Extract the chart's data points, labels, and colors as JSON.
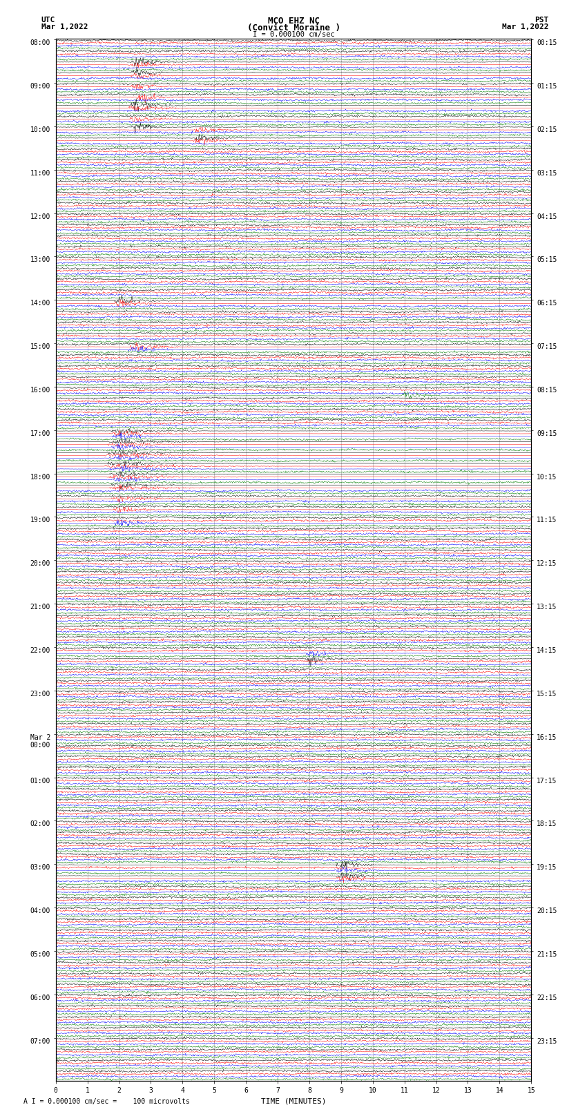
{
  "title_line1": "MCO EHZ NC",
  "title_line2": "(Convict Moraine )",
  "scale_label": "I = 0.000100 cm/sec",
  "bottom_label": "A I = 0.000100 cm/sec =    100 microvolts",
  "xlabel": "TIME (MINUTES)",
  "utc_label": "UTC",
  "utc_date": "Mar 1,2022",
  "pst_label": "PST",
  "pst_date": "Mar 1,2022",
  "left_times_hourly": [
    "08:00",
    "09:00",
    "10:00",
    "11:00",
    "12:00",
    "13:00",
    "14:00",
    "15:00",
    "16:00",
    "17:00",
    "18:00",
    "19:00",
    "20:00",
    "21:00",
    "22:00",
    "23:00",
    "Mar 2\n00:00",
    "01:00",
    "02:00",
    "03:00",
    "04:00",
    "05:00",
    "06:00",
    "07:00"
  ],
  "right_times_hourly": [
    "00:15",
    "01:15",
    "02:15",
    "03:15",
    "04:15",
    "05:15",
    "06:15",
    "07:15",
    "08:15",
    "09:15",
    "10:15",
    "11:15",
    "12:15",
    "13:15",
    "14:15",
    "15:15",
    "16:15",
    "17:15",
    "18:15",
    "19:15",
    "20:15",
    "21:15",
    "22:15",
    "23:15"
  ],
  "colors": [
    "black",
    "red",
    "blue",
    "green"
  ],
  "num_rows": 96,
  "traces_per_row": 4,
  "minutes_per_row": 15,
  "bg_color": "white",
  "grid_color": "#999999",
  "seed": 12345
}
